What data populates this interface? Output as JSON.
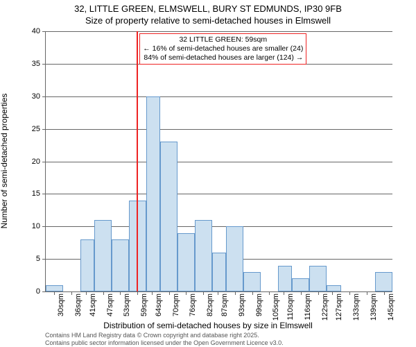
{
  "title_line1": "32, LITTLE GREEN, ELMSWELL, BURY ST EDMUNDS, IP30 9FB",
  "title_line2": "Size of property relative to semi-detached houses in Elmswell",
  "y_axis_label": "Number of semi-detached properties",
  "x_axis_label": "Distribution of semi-detached houses by size in Elmswell",
  "attribution_line1": "Contains HM Land Registry data © Crown copyright and database right 2025.",
  "attribution_line2": "Contains public sector information licensed under the Open Government Licence v3.0.",
  "chart": {
    "type": "histogram",
    "ylim": [
      0,
      40
    ],
    "ytick_step": 5,
    "xlim": [
      27,
      148
    ],
    "x_ticks": [
      30,
      36,
      41,
      47,
      53,
      59,
      64,
      70,
      76,
      82,
      87,
      93,
      99,
      105,
      110,
      116,
      122,
      127,
      133,
      139,
      145
    ],
    "x_tick_suffix": "sqm",
    "bar_fill": "#cce0f0",
    "bar_border": "#6699cc",
    "grid_color": "#666666",
    "background": "#ffffff",
    "reference_line": {
      "x": 59,
      "color": "#ee2222"
    },
    "annotation": {
      "line1": "32 LITTLE GREEN: 59sqm",
      "line2": "← 16% of semi-detached houses are smaller (24)",
      "line3": "84% of semi-detached houses are larger (124) →",
      "border_color": "#ee2222"
    },
    "bars": [
      {
        "x0": 27,
        "x1": 33,
        "y": 1
      },
      {
        "x0": 39,
        "x1": 44,
        "y": 8
      },
      {
        "x0": 44,
        "x1": 50,
        "y": 11
      },
      {
        "x0": 50,
        "x1": 56,
        "y": 8
      },
      {
        "x0": 56,
        "x1": 62,
        "y": 14
      },
      {
        "x0": 62,
        "x1": 67,
        "y": 30
      },
      {
        "x0": 67,
        "x1": 73,
        "y": 23
      },
      {
        "x0": 73,
        "x1": 79,
        "y": 9
      },
      {
        "x0": 79,
        "x1": 85,
        "y": 11
      },
      {
        "x0": 85,
        "x1": 90,
        "y": 6
      },
      {
        "x0": 90,
        "x1": 96,
        "y": 10
      },
      {
        "x0": 96,
        "x1": 102,
        "y": 3
      },
      {
        "x0": 108,
        "x1": 113,
        "y": 4
      },
      {
        "x0": 113,
        "x1": 119,
        "y": 2
      },
      {
        "x0": 119,
        "x1": 125,
        "y": 4
      },
      {
        "x0": 125,
        "x1": 130,
        "y": 1
      },
      {
        "x0": 142,
        "x1": 148,
        "y": 3
      }
    ]
  }
}
